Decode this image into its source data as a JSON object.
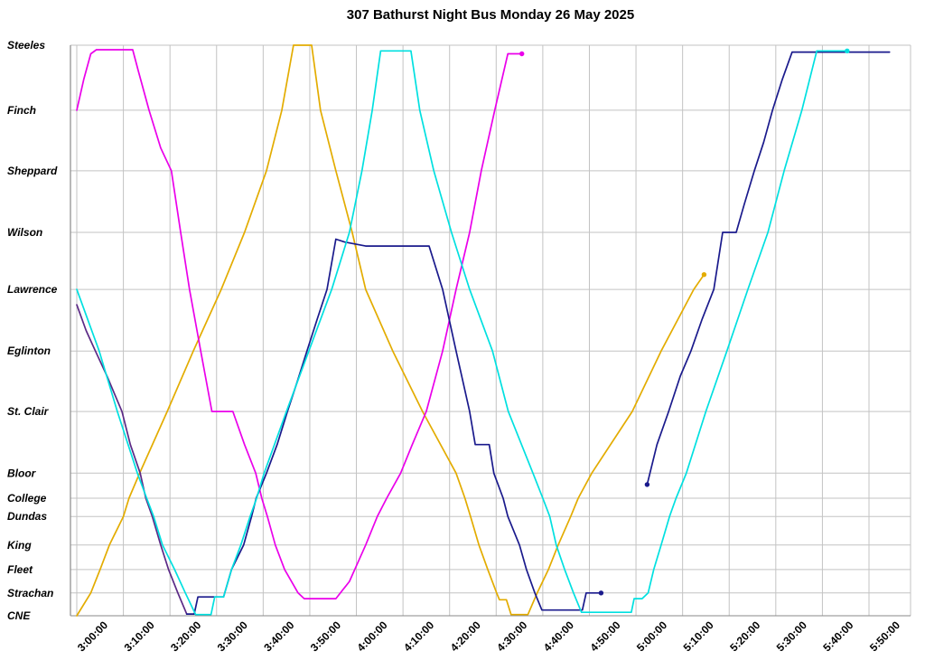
{
  "chart_data": {
    "type": "line",
    "title": "307 Bathurst Night Bus Monday 26 May 2025",
    "x_axis": {
      "tick_labels": [
        "3:00:00",
        "3:10:00",
        "3:20:00",
        "3:30:00",
        "3:40:00",
        "3:50:00",
        "4:00:00",
        "4:10:00",
        "4:20:00",
        "4:30:00",
        "4:40:00",
        "4:50:00",
        "5:00:00",
        "5:10:00",
        "5:20:00",
        "5:30:00",
        "5:40:00",
        "5:50:00"
      ],
      "tick_interval_minutes": 10,
      "start_time": "3:00:00",
      "end_time": "5:50:00"
    },
    "y_axis": {
      "stations": [
        {
          "label": "CNE",
          "pos": 0.0
        },
        {
          "label": "Strachan",
          "pos": 0.04
        },
        {
          "label": "Fleet",
          "pos": 0.081
        },
        {
          "label": "King",
          "pos": 0.124
        },
        {
          "label": "Dundas",
          "pos": 0.174
        },
        {
          "label": "College",
          "pos": 0.206
        },
        {
          "label": "Bloor",
          "pos": 0.25
        },
        {
          "label": "St. Clair",
          "pos": 0.358
        },
        {
          "label": "Eglinton",
          "pos": 0.464
        },
        {
          "label": "Lawrence",
          "pos": 0.572
        },
        {
          "label": "Wilson",
          "pos": 0.672
        },
        {
          "label": "Sheppard",
          "pos": 0.78
        },
        {
          "label": "Finch",
          "pos": 0.886
        },
        {
          "label": "Steeles",
          "pos": 1.0
        }
      ]
    },
    "grid": {
      "line_color": "#c3c3c3",
      "axis_color": "#8a8a8a"
    },
    "legend": "none",
    "series": [
      {
        "name": "vehicle-gold",
        "color": "#e3ac00",
        "marker_end": true,
        "points": [
          [
            0,
            0
          ],
          [
            3,
            0.04
          ],
          [
            5,
            0.081
          ],
          [
            7,
            0.124
          ],
          [
            10,
            0.174
          ],
          [
            11.2,
            0.206
          ],
          [
            13.5,
            0.25
          ],
          [
            19.4,
            0.358
          ],
          [
            25,
            0.464
          ],
          [
            31,
            0.572
          ],
          [
            36,
            0.672
          ],
          [
            40.7,
            0.78
          ],
          [
            44,
            0.886
          ],
          [
            46.5,
            1
          ],
          [
            50.4,
            1
          ],
          [
            52.3,
            0.886
          ],
          [
            55.6,
            0.78
          ],
          [
            59.1,
            0.672
          ],
          [
            62,
            0.572
          ],
          [
            67.8,
            0.464
          ],
          [
            74.2,
            0.358
          ],
          [
            81.4,
            0.25
          ],
          [
            83.3,
            0.206
          ],
          [
            84.5,
            0.174
          ],
          [
            86.3,
            0.124
          ],
          [
            88.2,
            0.081
          ],
          [
            90.1,
            0.04
          ],
          [
            90.7,
            0.028
          ],
          [
            92.2,
            0.028
          ],
          [
            93.2,
            0.002
          ],
          [
            96.8,
            0.002
          ],
          [
            98.8,
            0.04
          ],
          [
            101.2,
            0.081
          ],
          [
            103.3,
            0.124
          ],
          [
            106,
            0.174
          ],
          [
            107.6,
            0.206
          ],
          [
            110.5,
            0.25
          ],
          [
            119.2,
            0.358
          ],
          [
            125.4,
            0.464
          ],
          [
            132.4,
            0.572
          ],
          [
            134.6,
            0.598
          ]
        ]
      },
      {
        "name": "vehicle-magenta",
        "color": "#ea00ea",
        "marker_end": true,
        "points": [
          [
            0,
            0.886
          ],
          [
            1.5,
            0.94
          ],
          [
            3,
            0.985
          ],
          [
            4.2,
            0.992
          ],
          [
            12,
            0.992
          ],
          [
            13.2,
            0.955
          ],
          [
            15.5,
            0.886
          ],
          [
            18,
            0.82
          ],
          [
            20.3,
            0.78
          ],
          [
            22.3,
            0.672
          ],
          [
            24.2,
            0.572
          ],
          [
            26.6,
            0.464
          ],
          [
            29,
            0.358
          ],
          [
            33.5,
            0.358
          ],
          [
            36,
            0.3
          ],
          [
            38.4,
            0.25
          ],
          [
            39.7,
            0.206
          ],
          [
            40.9,
            0.174
          ],
          [
            42.6,
            0.124
          ],
          [
            44.6,
            0.081
          ],
          [
            47.5,
            0.04
          ],
          [
            48.8,
            0.03
          ],
          [
            55.6,
            0.03
          ],
          [
            58.5,
            0.06
          ],
          [
            62,
            0.124
          ],
          [
            64.5,
            0.174
          ],
          [
            66.5,
            0.206
          ],
          [
            69.5,
            0.25
          ],
          [
            72,
            0.3
          ],
          [
            75,
            0.358
          ],
          [
            78.5,
            0.464
          ],
          [
            81.4,
            0.572
          ],
          [
            84.3,
            0.672
          ],
          [
            86.8,
            0.78
          ],
          [
            89.7,
            0.886
          ],
          [
            92.5,
            0.985
          ],
          [
            95.5,
            0.985
          ]
        ]
      },
      {
        "name": "vehicle-purple",
        "color": "#5b2a86",
        "marker_end": false,
        "points": [
          [
            0,
            0.545
          ],
          [
            2,
            0.5
          ],
          [
            4,
            0.464
          ],
          [
            6.5,
            0.42
          ],
          [
            9.7,
            0.358
          ],
          [
            11.5,
            0.3
          ],
          [
            13.6,
            0.25
          ],
          [
            14.8,
            0.206
          ],
          [
            16.2,
            0.174
          ],
          [
            18,
            0.124
          ],
          [
            19.7,
            0.081
          ],
          [
            21.7,
            0.04
          ],
          [
            23.6,
            0.003
          ]
        ]
      },
      {
        "name": "vehicle-navy-a",
        "color": "#1a1a8c",
        "marker_end": true,
        "points": [
          [
            23.6,
            0.003
          ],
          [
            25.2,
            0.003
          ],
          [
            26,
            0.033
          ],
          [
            31.5,
            0.033
          ],
          [
            33.2,
            0.081
          ],
          [
            35.8,
            0.124
          ],
          [
            37.5,
            0.174
          ],
          [
            38.5,
            0.206
          ],
          [
            40.7,
            0.25
          ],
          [
            43,
            0.3
          ],
          [
            45.2,
            0.358
          ],
          [
            47.3,
            0.41
          ],
          [
            49.4,
            0.464
          ],
          [
            51.6,
            0.52
          ],
          [
            53.7,
            0.572
          ],
          [
            55.6,
            0.66
          ],
          [
            57.5,
            0.655
          ],
          [
            62,
            0.648
          ],
          [
            75.6,
            0.648
          ],
          [
            78.5,
            0.572
          ],
          [
            81.4,
            0.464
          ],
          [
            84.3,
            0.358
          ],
          [
            85.5,
            0.3
          ],
          [
            88.5,
            0.3
          ],
          [
            89.5,
            0.25
          ],
          [
            91.5,
            0.206
          ],
          [
            92.5,
            0.174
          ],
          [
            95,
            0.124
          ],
          [
            96.5,
            0.081
          ],
          [
            98.3,
            0.04
          ],
          [
            99.8,
            0.01
          ],
          [
            108.5,
            0.01
          ],
          [
            109.3,
            0.04
          ],
          [
            112.5,
            0.04
          ]
        ]
      },
      {
        "name": "vehicle-navy-b",
        "color": "#1a1a8c",
        "marker_start": true,
        "points": [
          [
            122.4,
            0.23
          ],
          [
            124.5,
            0.3
          ],
          [
            127,
            0.358
          ],
          [
            129.5,
            0.42
          ],
          [
            131.8,
            0.464
          ],
          [
            134.2,
            0.52
          ],
          [
            136.7,
            0.572
          ],
          [
            138.6,
            0.672
          ],
          [
            141.5,
            0.672
          ],
          [
            143.2,
            0.72
          ],
          [
            145.4,
            0.78
          ],
          [
            147.4,
            0.83
          ],
          [
            149.3,
            0.886
          ],
          [
            151.4,
            0.94
          ],
          [
            153.5,
            0.988
          ],
          [
            174.4,
            0.988
          ]
        ]
      },
      {
        "name": "vehicle-cyan",
        "color": "#00e0e0",
        "marker_end": true,
        "points": [
          [
            0,
            0.572
          ],
          [
            4.8,
            0.464
          ],
          [
            8.7,
            0.358
          ],
          [
            13,
            0.25
          ],
          [
            15,
            0.206
          ],
          [
            16.5,
            0.174
          ],
          [
            18.4,
            0.124
          ],
          [
            21,
            0.081
          ],
          [
            23.3,
            0.04
          ],
          [
            25.5,
            0.002
          ],
          [
            28.8,
            0.002
          ],
          [
            29.6,
            0.033
          ],
          [
            31.5,
            0.033
          ],
          [
            33.2,
            0.081
          ],
          [
            35.2,
            0.124
          ],
          [
            37.2,
            0.174
          ],
          [
            38.6,
            0.206
          ],
          [
            40.2,
            0.25
          ],
          [
            45,
            0.358
          ],
          [
            49.8,
            0.464
          ],
          [
            54.7,
            0.572
          ],
          [
            58.5,
            0.672
          ],
          [
            61.2,
            0.78
          ],
          [
            63.4,
            0.886
          ],
          [
            65.2,
            0.99
          ],
          [
            71.7,
            0.99
          ],
          [
            73.6,
            0.886
          ],
          [
            76.6,
            0.78
          ],
          [
            80.4,
            0.672
          ],
          [
            84.3,
            0.572
          ],
          [
            89.2,
            0.464
          ],
          [
            92.6,
            0.358
          ],
          [
            97.9,
            0.25
          ],
          [
            100,
            0.206
          ],
          [
            101.5,
            0.174
          ],
          [
            102.9,
            0.124
          ],
          [
            104.7,
            0.081
          ],
          [
            106.6,
            0.04
          ],
          [
            108.3,
            0.006
          ],
          [
            119,
            0.006
          ],
          [
            119.6,
            0.03
          ],
          [
            121.3,
            0.03
          ],
          [
            122.6,
            0.04
          ],
          [
            123.8,
            0.081
          ],
          [
            125.4,
            0.124
          ],
          [
            127.2,
            0.174
          ],
          [
            128.6,
            0.206
          ],
          [
            130.8,
            0.25
          ],
          [
            135,
            0.358
          ],
          [
            139.5,
            0.464
          ],
          [
            144,
            0.572
          ],
          [
            148.3,
            0.672
          ],
          [
            151.8,
            0.78
          ],
          [
            155.6,
            0.886
          ],
          [
            158.8,
            0.99
          ],
          [
            165.3,
            0.99
          ]
        ]
      }
    ]
  }
}
